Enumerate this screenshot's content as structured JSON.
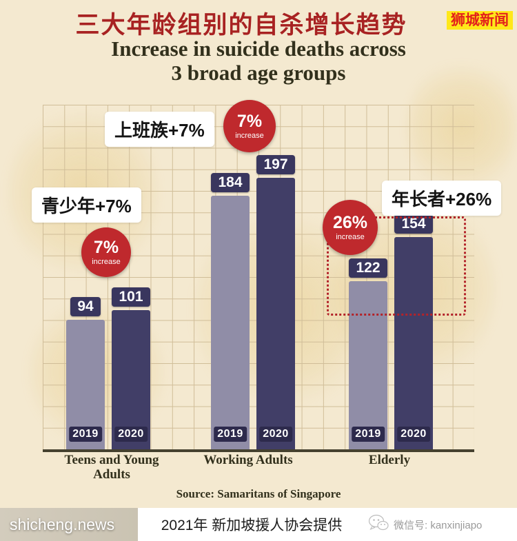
{
  "header": {
    "title_cn": "三大年龄组别的自杀增长趋势",
    "brand_badge": "狮城新闻",
    "title_en_line1": "Increase in suicide deaths across",
    "title_en_line2": "3 broad age groups"
  },
  "chart_data": {
    "type": "bar",
    "title": "Increase in suicide deaths across 3 broad age groups",
    "categories": [
      "Teens and Young Adults",
      "Working Adults",
      "Elderly"
    ],
    "series": [
      {
        "name": "2019",
        "values": [
          94,
          184,
          122
        ]
      },
      {
        "name": "2020",
        "values": [
          101,
          197,
          154
        ]
      }
    ],
    "ylim": [
      0,
      210
    ],
    "grid": true,
    "value_labels": true,
    "legend_position": "none",
    "annotations": [
      {
        "target": "Teens and Young Adults",
        "label": "青少年+7%",
        "pct": "7%",
        "pct_sub": "increase"
      },
      {
        "target": "Working Adults",
        "label": "上班族+7%",
        "pct": "7%",
        "pct_sub": "increase"
      },
      {
        "target": "Elderly",
        "label": "年长者+26%",
        "pct": "26%",
        "pct_sub": "increase",
        "highlight": "dotted-box"
      }
    ],
    "source": "Source: Samaritans of Singapore"
  },
  "footer": {
    "caption": "2021年 新加坡援人协会提供",
    "watermark": "shicheng.news",
    "wechat": "微信号: kanxinjiapo"
  },
  "colors": {
    "bg": "#f4e9d0",
    "grid_line": "#d0bd98",
    "bar_2019": "#908da7",
    "bar_2020": "#413e67",
    "badge_bg": "#39365e",
    "year_badge_bg": "#2d2a4c",
    "circle_red": "#bf292d",
    "title_red": "#a82222",
    "brand_red": "#e3211c",
    "brand_yellow": "#ffe81a",
    "ink": "#32301c"
  }
}
